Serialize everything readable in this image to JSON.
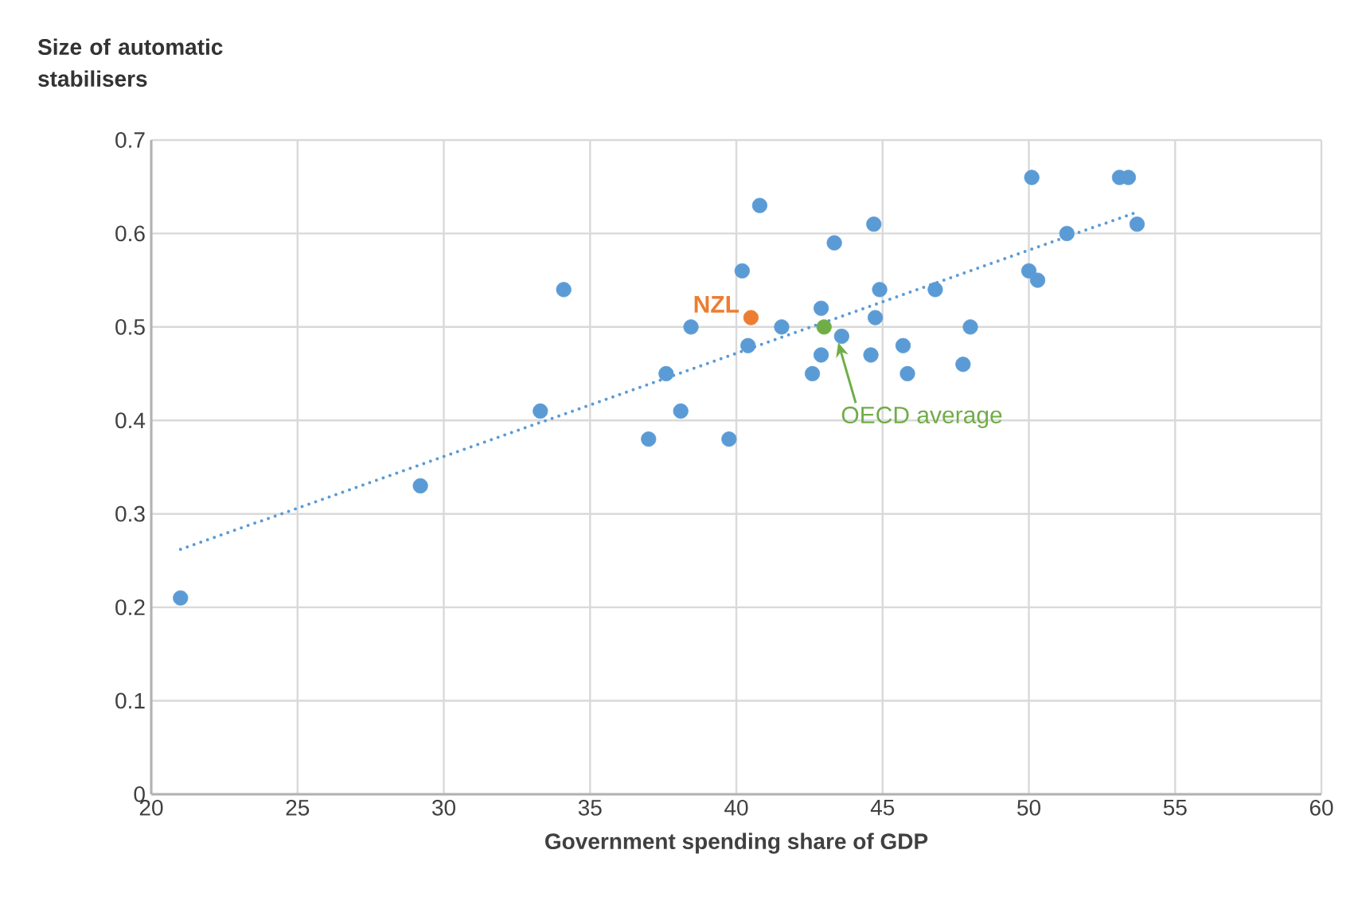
{
  "chart_data": {
    "type": "scatter",
    "xlabel": "Government spending share of GDP",
    "ylabel": "Size of automatic stabilisers",
    "xlim": [
      20,
      60
    ],
    "xticks": [
      20,
      25,
      30,
      35,
      40,
      45,
      50,
      55,
      60
    ],
    "ylim": [
      0,
      0.7
    ],
    "yticks": [
      0,
      0.1,
      0.2,
      0.3,
      0.4,
      0.5,
      0.6,
      0.7
    ],
    "grid": true,
    "legend": false,
    "annotations": [
      {
        "text": "OECD average",
        "x": 43.4,
        "y": 0.485
      }
    ],
    "series": [
      {
        "marker": "circle",
        "color": "#5b9bd5",
        "x": [
          21.0,
          29.2,
          33.3,
          34.1,
          37.0,
          37.6,
          38.1,
          38.45,
          39.75,
          40.2,
          40.4,
          40.8,
          41.55,
          42.6,
          42.9,
          42.9,
          43.35,
          43.6,
          44.6,
          44.7,
          44.75,
          44.9,
          45.7,
          45.85,
          46.8,
          47.75,
          48.0,
          50.0,
          50.1,
          50.3,
          51.3,
          53.1,
          53.4,
          53.7
        ],
        "values": [
          0.21,
          0.33,
          0.41,
          0.54,
          0.38,
          0.45,
          0.41,
          0.5,
          0.38,
          0.56,
          0.48,
          0.63,
          0.5,
          0.45,
          0.47,
          0.52,
          0.59,
          0.49,
          0.47,
          0.61,
          0.51,
          0.54,
          0.48,
          0.45,
          0.54,
          0.46,
          0.5,
          0.56,
          0.66,
          0.55,
          0.6,
          0.66,
          0.66,
          0.61
        ]
      },
      {
        "name": "NZL",
        "marker": "circle",
        "color": "#ed7d31",
        "x": [
          40.5
        ],
        "values": [
          0.51
        ]
      },
      {
        "marker": "circle",
        "color": "#70ad47",
        "x": [
          43.0
        ],
        "values": [
          0.5
        ]
      },
      {
        "type": "line",
        "line_style": "dotted",
        "marker": "none",
        "color": "#5b9bd5",
        "x": [
          21.0,
          53.7
        ],
        "values": [
          0.262,
          0.623
        ]
      }
    ]
  }
}
